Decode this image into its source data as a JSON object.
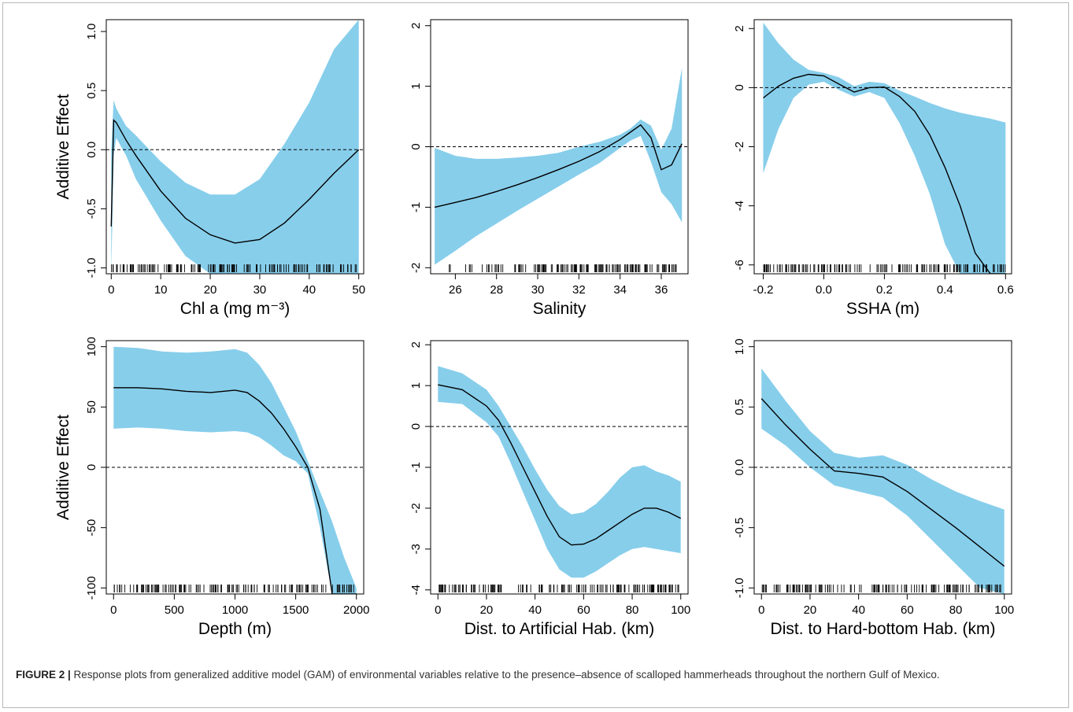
{
  "figure": {
    "caption_label": "FIGURE 2 |",
    "caption_text": " Response plots from generalized additive model (GAM) of environmental variables relative to the presence–absence of scalloped hammerheads throughout the northern Gulf of Mexico."
  },
  "colors": {
    "ci_band": "#87ceeb",
    "line": "#000000",
    "zero_line": "#000000"
  },
  "chart_data": [
    {
      "type": "line",
      "xlabel": "Chl a (mg m⁻³)",
      "ylabel": "Additive Effect",
      "xlim": [
        -1,
        51
      ],
      "ylim": [
        -1.05,
        1.1
      ],
      "xticks": [
        0,
        10,
        20,
        30,
        40,
        50
      ],
      "xtick_labels": [
        "0",
        "10",
        "20",
        "30",
        "40",
        "50"
      ],
      "yticks": [
        -1.0,
        -0.5,
        0.0,
        0.5,
        1.0
      ],
      "ytick_labels": [
        "-1.0",
        "-0.5",
        "0.0",
        "0.5",
        "1.0"
      ],
      "reference_line": 0,
      "x": [
        0,
        0.5,
        1,
        3,
        5,
        10,
        15,
        20,
        25,
        30,
        35,
        40,
        45,
        50
      ],
      "fit": [
        -0.65,
        0.25,
        0.23,
        0.08,
        -0.05,
        -0.35,
        -0.58,
        -0.72,
        -0.79,
        -0.76,
        -0.62,
        -0.42,
        -0.2,
        0.0
      ],
      "lower": [
        -1.05,
        -0.05,
        0.1,
        -0.05,
        -0.25,
        -0.6,
        -0.9,
        -1.05,
        -1.05,
        -1.05,
        -1.05,
        -1.05,
        -1.05,
        -1.05
      ],
      "upper": [
        0.0,
        0.42,
        0.35,
        0.2,
        0.12,
        -0.1,
        -0.28,
        -0.38,
        -0.38,
        -0.25,
        0.05,
        0.4,
        0.85,
        1.1
      ]
    },
    {
      "type": "line",
      "xlabel": "Salinity",
      "ylabel": "",
      "xlim": [
        24.8,
        37.3
      ],
      "ylim": [
        -2.1,
        2.1
      ],
      "xticks": [
        26,
        28,
        30,
        32,
        34,
        36
      ],
      "xtick_labels": [
        "26",
        "28",
        "30",
        "32",
        "34",
        "36"
      ],
      "yticks": [
        -2,
        -1,
        0,
        1,
        2
      ],
      "ytick_labels": [
        "-2",
        "-1",
        "0",
        "1",
        "2"
      ],
      "reference_line": 0,
      "x": [
        25,
        26,
        27,
        28,
        29,
        30,
        31,
        32,
        33,
        34,
        34.5,
        35,
        35.5,
        36,
        36.5,
        37
      ],
      "fit": [
        -1.0,
        -0.92,
        -0.84,
        -0.74,
        -0.63,
        -0.51,
        -0.38,
        -0.24,
        -0.08,
        0.12,
        0.24,
        0.36,
        0.15,
        -0.38,
        -0.3,
        0.05
      ],
      "lower": [
        -1.95,
        -1.72,
        -1.48,
        -1.27,
        -1.06,
        -0.86,
        -0.66,
        -0.46,
        -0.27,
        -0.02,
        0.1,
        0.18,
        -0.25,
        -0.75,
        -0.95,
        -1.25
      ],
      "upper": [
        -0.02,
        -0.15,
        -0.2,
        -0.2,
        -0.18,
        -0.15,
        -0.1,
        0.0,
        0.08,
        0.2,
        0.3,
        0.45,
        0.35,
        -0.05,
        0.3,
        1.3
      ]
    },
    {
      "type": "line",
      "xlabel": "SSHA (m)",
      "ylabel": "",
      "xlim": [
        -0.23,
        0.62
      ],
      "ylim": [
        -6.3,
        2.3
      ],
      "xticks": [
        -0.2,
        0.0,
        0.2,
        0.4,
        0.6
      ],
      "xtick_labels": [
        "-0.2",
        "0.0",
        "0.2",
        "0.4",
        "0.6"
      ],
      "yticks": [
        -6,
        -4,
        -2,
        0,
        2
      ],
      "ytick_labels": [
        "-6",
        "-4",
        "-2",
        "0",
        "2"
      ],
      "reference_line": 0,
      "x": [
        -0.2,
        -0.15,
        -0.1,
        -0.05,
        0.0,
        0.05,
        0.1,
        0.15,
        0.2,
        0.25,
        0.3,
        0.35,
        0.4,
        0.45,
        0.5,
        0.55,
        0.6
      ],
      "fit": [
        -0.35,
        0.05,
        0.32,
        0.45,
        0.4,
        0.12,
        -0.15,
        0.0,
        0.02,
        -0.3,
        -0.8,
        -1.6,
        -2.7,
        -4.0,
        -5.6,
        -6.3,
        -6.3
      ],
      "lower": [
        -2.9,
        -1.4,
        -0.35,
        0.1,
        0.2,
        -0.08,
        -0.3,
        -0.15,
        -0.35,
        -1.2,
        -2.3,
        -3.6,
        -5.3,
        -6.3,
        -6.3,
        -6.3,
        -6.3
      ],
      "upper": [
        2.2,
        1.5,
        0.95,
        0.6,
        0.5,
        0.35,
        0.05,
        0.2,
        0.15,
        -0.1,
        -0.3,
        -0.52,
        -0.7,
        -0.85,
        -0.95,
        -1.05,
        -1.18
      ]
    },
    {
      "type": "line",
      "xlabel": "Depth (m)",
      "ylabel": "Additive Effect",
      "xlim": [
        -60,
        2060
      ],
      "ylim": [
        -105,
        105
      ],
      "xticks": [
        0,
        500,
        1000,
        1500,
        2000
      ],
      "xtick_labels": [
        "0",
        "500",
        "1000",
        "1500",
        "2000"
      ],
      "yticks": [
        -100,
        -50,
        0,
        50,
        100
      ],
      "ytick_labels": [
        "-100",
        "-50",
        "0",
        "50",
        "100"
      ],
      "reference_line": 0,
      "x": [
        0,
        200,
        400,
        600,
        800,
        1000,
        1100,
        1200,
        1300,
        1400,
        1500,
        1600,
        1700,
        1800,
        1900,
        2000
      ],
      "fit": [
        66,
        66,
        65,
        63,
        62,
        64,
        62,
        55,
        45,
        32,
        17,
        0,
        -35,
        -105,
        -105,
        -105
      ],
      "lower": [
        32,
        33,
        32,
        30,
        29,
        30,
        29,
        25,
        18,
        10,
        5,
        -5,
        -50,
        -105,
        -105,
        -105
      ],
      "upper": [
        100,
        99,
        96,
        95,
        96,
        98,
        95,
        85,
        70,
        50,
        30,
        5,
        -20,
        -45,
        -75,
        -100
      ]
    },
    {
      "type": "line",
      "xlabel": "Dist. to Artificial Hab. (km)",
      "ylabel": "",
      "xlim": [
        -3,
        103
      ],
      "ylim": [
        -4.1,
        2.1
      ],
      "xticks": [
        0,
        20,
        40,
        60,
        80,
        100
      ],
      "xtick_labels": [
        "0",
        "20",
        "40",
        "60",
        "80",
        "100"
      ],
      "yticks": [
        -4,
        -3,
        -2,
        -1,
        0,
        1,
        2
      ],
      "ytick_labels": [
        "-4",
        "-3",
        "-2",
        "-1",
        "0",
        "1",
        "2"
      ],
      "reference_line": 0,
      "x": [
        0,
        10,
        20,
        25,
        30,
        35,
        40,
        45,
        50,
        55,
        60,
        65,
        70,
        75,
        80,
        85,
        90,
        95,
        100
      ],
      "fit": [
        1.02,
        0.9,
        0.5,
        0.15,
        -0.4,
        -1.0,
        -1.6,
        -2.2,
        -2.7,
        -2.9,
        -2.88,
        -2.75,
        -2.55,
        -2.35,
        -2.15,
        -2.0,
        -2.0,
        -2.1,
        -2.25
      ],
      "lower": [
        0.6,
        0.55,
        0.1,
        -0.25,
        -0.9,
        -1.6,
        -2.3,
        -3.0,
        -3.5,
        -3.7,
        -3.7,
        -3.55,
        -3.35,
        -3.15,
        -3.0,
        -2.95,
        -3.0,
        -3.05,
        -3.1
      ],
      "upper": [
        1.48,
        1.3,
        0.9,
        0.5,
        0.0,
        -0.5,
        -1.05,
        -1.55,
        -1.95,
        -2.15,
        -2.1,
        -1.9,
        -1.6,
        -1.25,
        -1.0,
        -0.95,
        -1.1,
        -1.2,
        -1.35
      ]
    },
    {
      "type": "line",
      "xlabel": "Dist. to Hard-bottom Hab. (km)",
      "ylabel": "",
      "xlim": [
        -3,
        103
      ],
      "ylim": [
        -1.05,
        1.05
      ],
      "xticks": [
        0,
        20,
        40,
        60,
        80,
        100
      ],
      "xtick_labels": [
        "0",
        "20",
        "40",
        "60",
        "80",
        "100"
      ],
      "yticks": [
        -1.0,
        -0.5,
        0.0,
        0.5,
        1.0
      ],
      "ytick_labels": [
        "-1.0",
        "-0.5",
        "0.0",
        "0.5",
        "1.0"
      ],
      "reference_line": 0,
      "x": [
        0,
        10,
        20,
        30,
        40,
        50,
        60,
        70,
        80,
        90,
        100
      ],
      "fit": [
        0.57,
        0.35,
        0.15,
        -0.03,
        -0.05,
        -0.08,
        -0.2,
        -0.35,
        -0.5,
        -0.66,
        -0.82
      ],
      "lower": [
        0.32,
        0.18,
        0.0,
        -0.15,
        -0.2,
        -0.25,
        -0.4,
        -0.6,
        -0.8,
        -1.0,
        -1.05
      ],
      "upper": [
        0.82,
        0.55,
        0.3,
        0.12,
        0.08,
        0.1,
        0.02,
        -0.1,
        -0.2,
        -0.28,
        -0.35
      ]
    }
  ]
}
